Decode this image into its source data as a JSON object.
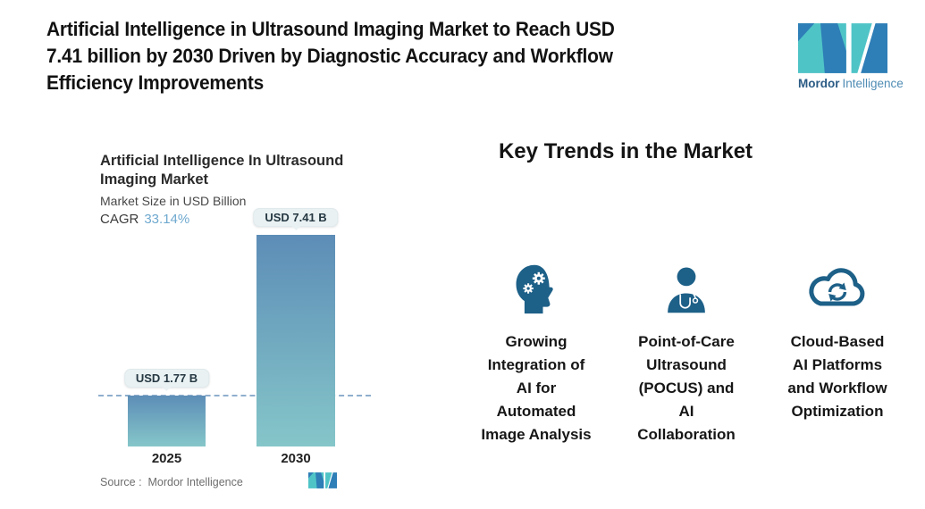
{
  "header": {
    "title": "Artificial Intelligence in Ultrasound Imaging Market to Reach USD 7.41 billion by 2030 Driven by Diagnostic Accuracy and Workflow Efficiency Improvements",
    "title_lines": [
      "Artificial Intelligence in Ultrasound Imaging Market to Reach USD",
      "7.41 billion by 2030 Driven by Diagnostic Accuracy and Workflow",
      "Efficiency Improvements"
    ],
    "logo": {
      "brand_bold": "Mordor",
      "brand_light": "Intelligence",
      "teal": "#4fc4c7",
      "blue": "#2e7eb7"
    }
  },
  "chart": {
    "title_lines": [
      "Artificial Intelligence In Ultrasound",
      "Imaging Market"
    ],
    "subtitle": "Market Size in USD Billion",
    "cagr_label": "CAGR",
    "cagr_value": "33.14%",
    "source": "Source :  Mordor Intelligence"
  },
  "chart_data": {
    "type": "bar",
    "title": "Artificial Intelligence In Ultrasound Imaging Market",
    "subtitle": "Market Size in USD Billion",
    "categories": [
      "2025",
      "2030"
    ],
    "values": [
      1.77,
      7.41
    ],
    "value_labels": [
      "USD 1.77 B",
      "USD 7.41 B"
    ],
    "cagr_percent": 33.14,
    "ylabel": "USD Billion",
    "ylim": [
      0,
      7.41
    ],
    "grid": false,
    "legend": false,
    "annotations": [
      "horizontal dashed baseline at 2025 value (1.77)"
    ],
    "bar_gradient_top": "#5d8db7",
    "bar_gradient_bottom": "#85c6c9",
    "baseline_color": "#8fafcd"
  },
  "trends": {
    "heading": "Key Trends in the Market",
    "icon_color": "#1d6088",
    "items": [
      {
        "icon": "head-gears-icon",
        "label": "Growing Integration of AI for Automated Image Analysis",
        "lines": [
          "Growing",
          "Integration of",
          "AI for",
          "Automated",
          "Image Analysis"
        ]
      },
      {
        "icon": "doctor-stethoscope-icon",
        "label": "Point-of-Care Ultrasound (POCUS) and AI Collaboration",
        "lines": [
          "Point-of-Care",
          "Ultrasound",
          "(POCUS) and",
          "AI",
          "Collaboration"
        ]
      },
      {
        "icon": "cloud-sync-icon",
        "label": "Cloud-Based AI Platforms and Workflow Optimization",
        "lines": [
          "Cloud-Based",
          "AI Platforms",
          "and Workflow",
          "Optimization"
        ]
      }
    ]
  }
}
